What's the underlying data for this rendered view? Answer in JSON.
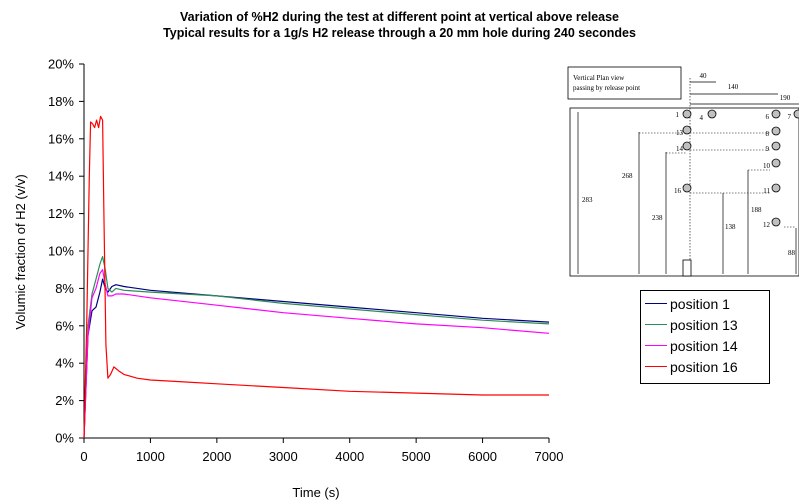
{
  "chart_data": {
    "type": "line",
    "title": "Variation of %H2 during the test at different point at vertical above release",
    "subtitle": "Typical results for a 1g/s H2 release through a 20 mm hole during 240 secondes",
    "xlabel": "Time (s)",
    "ylabel": "Volumic fraction of H2 (v/v)",
    "xlim": [
      0,
      7000
    ],
    "ylim": [
      0,
      0.2
    ],
    "x_ticks": [
      "0",
      "1000",
      "2000",
      "3000",
      "4000",
      "5000",
      "6000",
      "7000"
    ],
    "y_ticks": [
      "0%",
      "2%",
      "4%",
      "6%",
      "8%",
      "10%",
      "12%",
      "14%",
      "16%",
      "18%",
      "20%"
    ],
    "grid": false,
    "legend_position": "right",
    "series": [
      {
        "name": "position 1",
        "color": "#000080",
        "x": [
          0,
          60,
          120,
          180,
          240,
          280,
          320,
          360,
          420,
          480,
          600,
          1000,
          2000,
          3000,
          4000,
          5000,
          6000,
          7000
        ],
        "y": [
          0.0,
          0.055,
          0.068,
          0.07,
          0.078,
          0.085,
          0.08,
          0.078,
          0.081,
          0.082,
          0.081,
          0.079,
          0.076,
          0.073,
          0.07,
          0.067,
          0.064,
          0.062
        ]
      },
      {
        "name": "position 13",
        "color": "#2e8b57",
        "x": [
          0,
          60,
          120,
          180,
          240,
          280,
          320,
          360,
          420,
          480,
          600,
          1000,
          2000,
          3000,
          4000,
          5000,
          6000,
          7000
        ],
        "y": [
          0.0,
          0.06,
          0.077,
          0.085,
          0.093,
          0.097,
          0.09,
          0.08,
          0.078,
          0.08,
          0.079,
          0.078,
          0.076,
          0.072,
          0.069,
          0.066,
          0.063,
          0.061
        ]
      },
      {
        "name": "position 14",
        "color": "#ff00ff",
        "x": [
          0,
          60,
          120,
          180,
          240,
          280,
          320,
          360,
          420,
          480,
          600,
          1000,
          2000,
          3000,
          4000,
          5000,
          6000,
          7000
        ],
        "y": [
          0.0,
          0.055,
          0.075,
          0.08,
          0.088,
          0.09,
          0.082,
          0.076,
          0.076,
          0.077,
          0.077,
          0.075,
          0.071,
          0.067,
          0.064,
          0.061,
          0.059,
          0.056
        ]
      },
      {
        "name": "position 16",
        "color": "#ff0000",
        "x": [
          0,
          40,
          80,
          100,
          130,
          160,
          190,
          220,
          250,
          280,
          300,
          330,
          360,
          400,
          450,
          520,
          600,
          800,
          1000,
          1500,
          2000,
          3000,
          4000,
          5000,
          6000,
          7000
        ],
        "y": [
          0.0,
          0.06,
          0.14,
          0.169,
          0.168,
          0.166,
          0.17,
          0.166,
          0.172,
          0.17,
          0.12,
          0.05,
          0.032,
          0.034,
          0.038,
          0.036,
          0.034,
          0.032,
          0.031,
          0.03,
          0.029,
          0.027,
          0.025,
          0.024,
          0.023,
          0.023
        ]
      }
    ]
  },
  "inset_diagram": {
    "box_label_line1": "Vertical Plan view",
    "box_label_line2": "passing by release point",
    "dimensions_top": [
      "40",
      "140",
      "190"
    ],
    "dimensions_vertical": [
      "283",
      "268",
      "238",
      "138",
      "188",
      "88"
    ],
    "point_labels": [
      "1",
      "4",
      "13",
      "14",
      "16",
      "6",
      "7",
      "8",
      "9",
      "10",
      "11",
      "12"
    ]
  }
}
